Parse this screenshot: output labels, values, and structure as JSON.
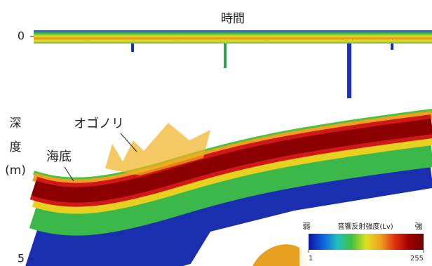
{
  "chart_data": {
    "type": "echogram",
    "title": "時間",
    "ylabel": [
      "深",
      "度",
      "(m)"
    ],
    "ylim": [
      0,
      5
    ],
    "yticks": [
      0,
      5
    ],
    "annotations": [
      "オゴノリ",
      "海底"
    ],
    "colorbar": {
      "title": "音響反射強度(Lv)",
      "low_label": "弱",
      "high_label": "強",
      "range": [
        1,
        255
      ],
      "ticks": [
        1,
        255
      ],
      "colors": [
        "#1010a0",
        "#1060e0",
        "#20c0c0",
        "#40c040",
        "#e0e020",
        "#f0a020",
        "#e03010",
        "#a00000",
        "#700000"
      ]
    }
  }
}
